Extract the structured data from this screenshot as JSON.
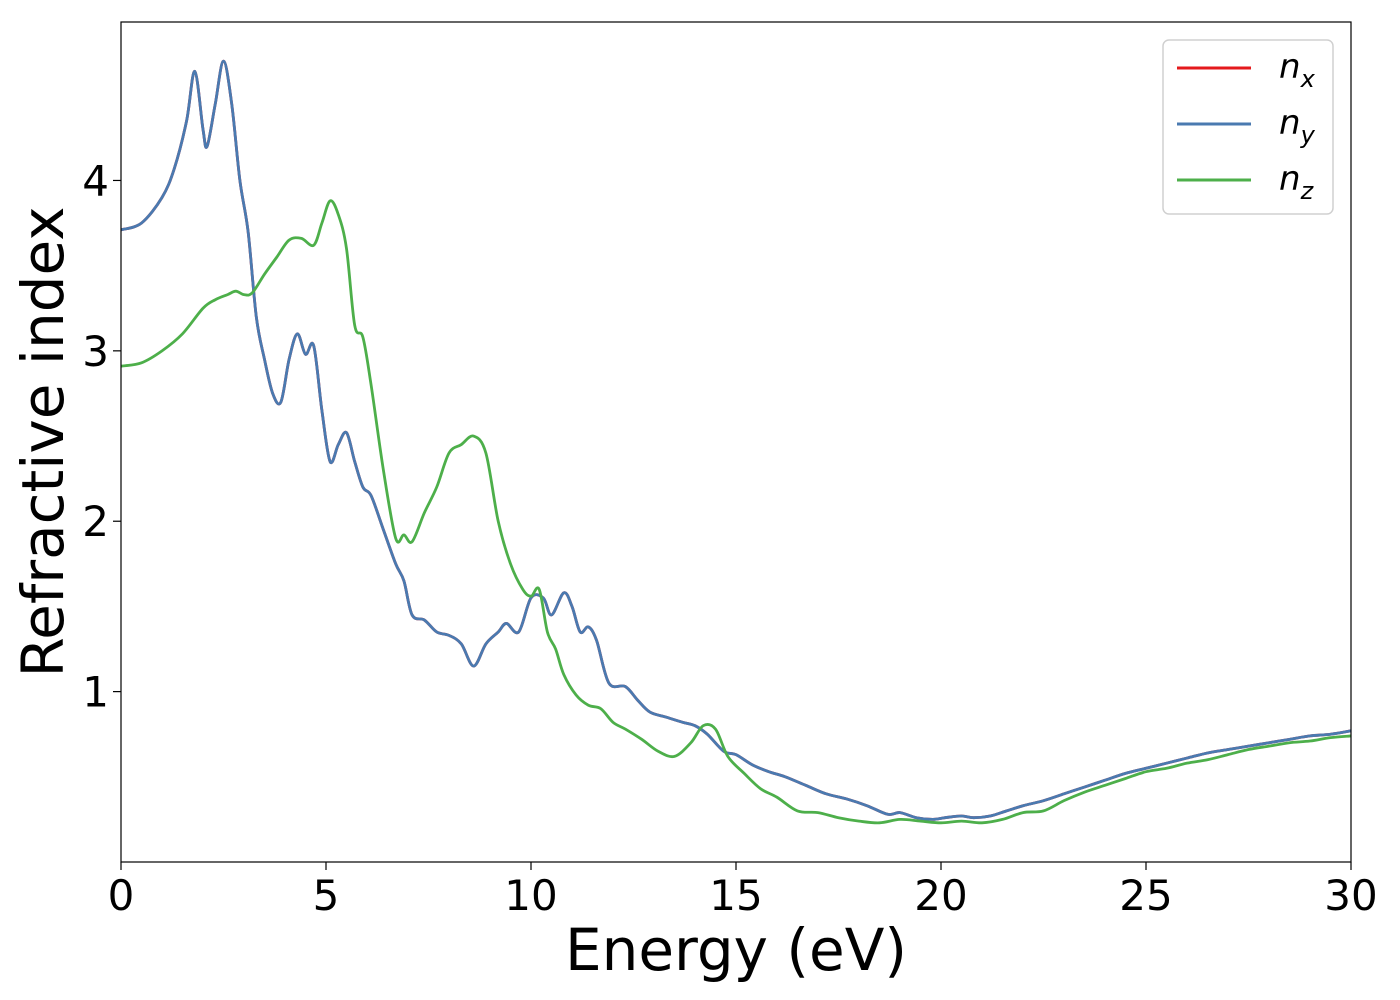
{
  "chart_data": {
    "type": "line",
    "title": "",
    "xlabel": "Energy (eV)",
    "ylabel": "Refractive index",
    "xlim": [
      0,
      30
    ],
    "ylim": [
      0,
      4.93
    ],
    "xticks": [
      0,
      5,
      10,
      15,
      20,
      25,
      30
    ],
    "yticks": [
      1,
      2,
      3,
      4
    ],
    "legend_position": "top-right",
    "grid": false,
    "series": [
      {
        "name": "n_x",
        "label_main": "n",
        "label_sub": "x",
        "color": "#e41a1c",
        "x": [
          0,
          0.5,
          1.0,
          1.3,
          1.6,
          1.8,
          2.0,
          2.1,
          2.3,
          2.5,
          2.7,
          2.9,
          3.1,
          3.3,
          3.5,
          3.7,
          3.9,
          4.1,
          4.3,
          4.5,
          4.7,
          4.9,
          5.1,
          5.3,
          5.5,
          5.7,
          5.9,
          6.1,
          6.4,
          6.7,
          6.9,
          7.1,
          7.4,
          7.7,
          8.0,
          8.3,
          8.6,
          8.9,
          9.2,
          9.4,
          9.7,
          10.0,
          10.3,
          10.5,
          10.8,
          11.0,
          11.2,
          11.4,
          11.6,
          11.9,
          12.3,
          12.6,
          12.9,
          13.3,
          13.7,
          14.0,
          14.3,
          14.7,
          15.0,
          15.4,
          15.8,
          16.2,
          16.7,
          17.2,
          17.7,
          18.2,
          18.7,
          19.0,
          19.4,
          19.8,
          20.1,
          20.5,
          20.8,
          21.2,
          21.6,
          22.0,
          22.5,
          23.0,
          23.5,
          24.0,
          24.5,
          25.0,
          25.5,
          26.0,
          26.5,
          27.0,
          27.5,
          28.0,
          28.5,
          29.0,
          29.5,
          30.0
        ],
        "values": [
          3.71,
          3.75,
          3.9,
          4.07,
          4.35,
          4.64,
          4.3,
          4.2,
          4.45,
          4.7,
          4.45,
          4.0,
          3.7,
          3.2,
          2.95,
          2.75,
          2.7,
          2.95,
          3.1,
          2.98,
          3.03,
          2.65,
          2.35,
          2.45,
          2.52,
          2.35,
          2.2,
          2.15,
          1.95,
          1.75,
          1.65,
          1.45,
          1.42,
          1.35,
          1.33,
          1.28,
          1.15,
          1.28,
          1.35,
          1.4,
          1.35,
          1.55,
          1.55,
          1.45,
          1.58,
          1.5,
          1.35,
          1.38,
          1.3,
          1.05,
          1.03,
          0.95,
          0.88,
          0.85,
          0.82,
          0.8,
          0.75,
          0.65,
          0.63,
          0.57,
          0.53,
          0.5,
          0.45,
          0.4,
          0.37,
          0.33,
          0.28,
          0.29,
          0.26,
          0.25,
          0.26,
          0.27,
          0.26,
          0.27,
          0.3,
          0.33,
          0.36,
          0.4,
          0.44,
          0.48,
          0.52,
          0.55,
          0.58,
          0.61,
          0.64,
          0.66,
          0.68,
          0.7,
          0.72,
          0.74,
          0.75,
          0.77
        ]
      },
      {
        "name": "n_y",
        "label_main": "n",
        "label_sub": "y",
        "color": "#4a7ab0",
        "x": [
          0,
          0.5,
          1.0,
          1.3,
          1.6,
          1.8,
          2.0,
          2.1,
          2.3,
          2.5,
          2.7,
          2.9,
          3.1,
          3.3,
          3.5,
          3.7,
          3.9,
          4.1,
          4.3,
          4.5,
          4.7,
          4.9,
          5.1,
          5.3,
          5.5,
          5.7,
          5.9,
          6.1,
          6.4,
          6.7,
          6.9,
          7.1,
          7.4,
          7.7,
          8.0,
          8.3,
          8.6,
          8.9,
          9.2,
          9.4,
          9.7,
          10.0,
          10.3,
          10.5,
          10.8,
          11.0,
          11.2,
          11.4,
          11.6,
          11.9,
          12.3,
          12.6,
          12.9,
          13.3,
          13.7,
          14.0,
          14.3,
          14.7,
          15.0,
          15.4,
          15.8,
          16.2,
          16.7,
          17.2,
          17.7,
          18.2,
          18.7,
          19.0,
          19.4,
          19.8,
          20.1,
          20.5,
          20.8,
          21.2,
          21.6,
          22.0,
          22.5,
          23.0,
          23.5,
          24.0,
          24.5,
          25.0,
          25.5,
          26.0,
          26.5,
          27.0,
          27.5,
          28.0,
          28.5,
          29.0,
          29.5,
          30.0
        ],
        "values": [
          3.71,
          3.75,
          3.9,
          4.07,
          4.35,
          4.64,
          4.3,
          4.2,
          4.45,
          4.7,
          4.45,
          4.0,
          3.7,
          3.2,
          2.95,
          2.75,
          2.7,
          2.95,
          3.1,
          2.98,
          3.03,
          2.65,
          2.35,
          2.45,
          2.52,
          2.35,
          2.2,
          2.15,
          1.95,
          1.75,
          1.65,
          1.45,
          1.42,
          1.35,
          1.33,
          1.28,
          1.15,
          1.28,
          1.35,
          1.4,
          1.35,
          1.55,
          1.55,
          1.45,
          1.58,
          1.5,
          1.35,
          1.38,
          1.3,
          1.05,
          1.03,
          0.95,
          0.88,
          0.85,
          0.82,
          0.8,
          0.75,
          0.65,
          0.63,
          0.57,
          0.53,
          0.5,
          0.45,
          0.4,
          0.37,
          0.33,
          0.28,
          0.29,
          0.26,
          0.25,
          0.26,
          0.27,
          0.26,
          0.27,
          0.3,
          0.33,
          0.36,
          0.4,
          0.44,
          0.48,
          0.52,
          0.55,
          0.58,
          0.61,
          0.64,
          0.66,
          0.68,
          0.7,
          0.72,
          0.74,
          0.75,
          0.77
        ]
      },
      {
        "name": "n_z",
        "label_main": "n",
        "label_sub": "z",
        "color": "#4daf4a",
        "x": [
          0,
          0.5,
          1.0,
          1.5,
          2.0,
          2.3,
          2.6,
          2.8,
          3.0,
          3.2,
          3.5,
          3.8,
          4.1,
          4.4,
          4.7,
          4.9,
          5.1,
          5.3,
          5.5,
          5.7,
          5.9,
          6.1,
          6.4,
          6.7,
          6.9,
          7.1,
          7.4,
          7.7,
          8.0,
          8.3,
          8.6,
          8.9,
          9.2,
          9.5,
          9.8,
          10.0,
          10.2,
          10.4,
          10.6,
          10.8,
          11.1,
          11.4,
          11.7,
          12.0,
          12.3,
          12.7,
          13.1,
          13.5,
          13.9,
          14.2,
          14.5,
          14.8,
          15.2,
          15.6,
          16.0,
          16.5,
          17.0,
          17.5,
          18.0,
          18.5,
          19.0,
          19.5,
          20.0,
          20.5,
          21.0,
          21.5,
          22.0,
          22.5,
          23.0,
          23.5,
          24.0,
          24.5,
          25.0,
          25.5,
          26.0,
          26.5,
          27.0,
          27.5,
          28.0,
          28.5,
          29.0,
          29.5,
          30.0
        ],
        "values": [
          2.91,
          2.93,
          3.0,
          3.1,
          3.25,
          3.3,
          3.33,
          3.35,
          3.33,
          3.34,
          3.45,
          3.55,
          3.65,
          3.66,
          3.62,
          3.75,
          3.88,
          3.8,
          3.6,
          3.15,
          3.08,
          2.8,
          2.3,
          1.9,
          1.92,
          1.88,
          2.05,
          2.2,
          2.4,
          2.45,
          2.5,
          2.4,
          2.0,
          1.75,
          1.6,
          1.56,
          1.6,
          1.35,
          1.25,
          1.1,
          0.98,
          0.92,
          0.9,
          0.82,
          0.78,
          0.72,
          0.65,
          0.62,
          0.7,
          0.8,
          0.78,
          0.62,
          0.52,
          0.43,
          0.38,
          0.3,
          0.29,
          0.26,
          0.24,
          0.23,
          0.25,
          0.24,
          0.23,
          0.24,
          0.23,
          0.25,
          0.29,
          0.3,
          0.36,
          0.41,
          0.45,
          0.49,
          0.53,
          0.55,
          0.58,
          0.6,
          0.63,
          0.66,
          0.68,
          0.7,
          0.71,
          0.73,
          0.74
        ]
      }
    ]
  }
}
